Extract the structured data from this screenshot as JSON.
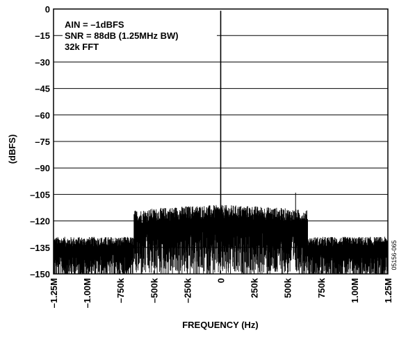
{
  "chart_data": {
    "type": "line",
    "title": "",
    "xlabel": "FREQUENCY (Hz)",
    "ylabel": "(dBFS)",
    "xlim": [
      -1250000,
      1250000
    ],
    "ylim": [
      -150,
      0
    ],
    "grid": true,
    "x_ticks": [
      {
        "value": -1250000,
        "label": "–1.25M"
      },
      {
        "value": -1000000,
        "label": "–1.00M"
      },
      {
        "value": -750000,
        "label": "–750k"
      },
      {
        "value": -500000,
        "label": "–500k"
      },
      {
        "value": -250000,
        "label": "–250k"
      },
      {
        "value": 0,
        "label": "0"
      },
      {
        "value": 250000,
        "label": "250k"
      },
      {
        "value": 500000,
        "label": "500k"
      },
      {
        "value": 750000,
        "label": "750k"
      },
      {
        "value": 1000000,
        "label": "1.00M"
      },
      {
        "value": 1250000,
        "label": "1.25M"
      }
    ],
    "y_ticks": [
      {
        "value": 0,
        "label": "0"
      },
      {
        "value": -15,
        "label": "–15"
      },
      {
        "value": -30,
        "label": "–30"
      },
      {
        "value": -45,
        "label": "–45"
      },
      {
        "value": -60,
        "label": "–60"
      },
      {
        "value": -75,
        "label": "–75"
      },
      {
        "value": -90,
        "label": "–90"
      },
      {
        "value": -105,
        "label": "–105"
      },
      {
        "value": -120,
        "label": "–120"
      },
      {
        "value": -135,
        "label": "–135"
      },
      {
        "value": -150,
        "label": "–150"
      }
    ],
    "annotations": [
      "AIN = –1dBFS",
      "SNR = 88dB (1.25MHz BW)",
      "32k FFT"
    ],
    "figure_id": "05156-065",
    "series": [
      {
        "color": "#000000",
        "noise_floor": [
          {
            "x_from": -1250000,
            "x_to": -650000,
            "level_db": -135
          },
          {
            "x_from": -650000,
            "x_to": 650000,
            "level_db": -122
          },
          {
            "x_from": 650000,
            "x_to": 1250000,
            "level_db": -135
          }
        ],
        "peaks": [
          {
            "x": 0,
            "y": -1
          },
          {
            "x": 0,
            "y": -105
          },
          {
            "x": 560000,
            "y": -104
          }
        ]
      }
    ]
  }
}
